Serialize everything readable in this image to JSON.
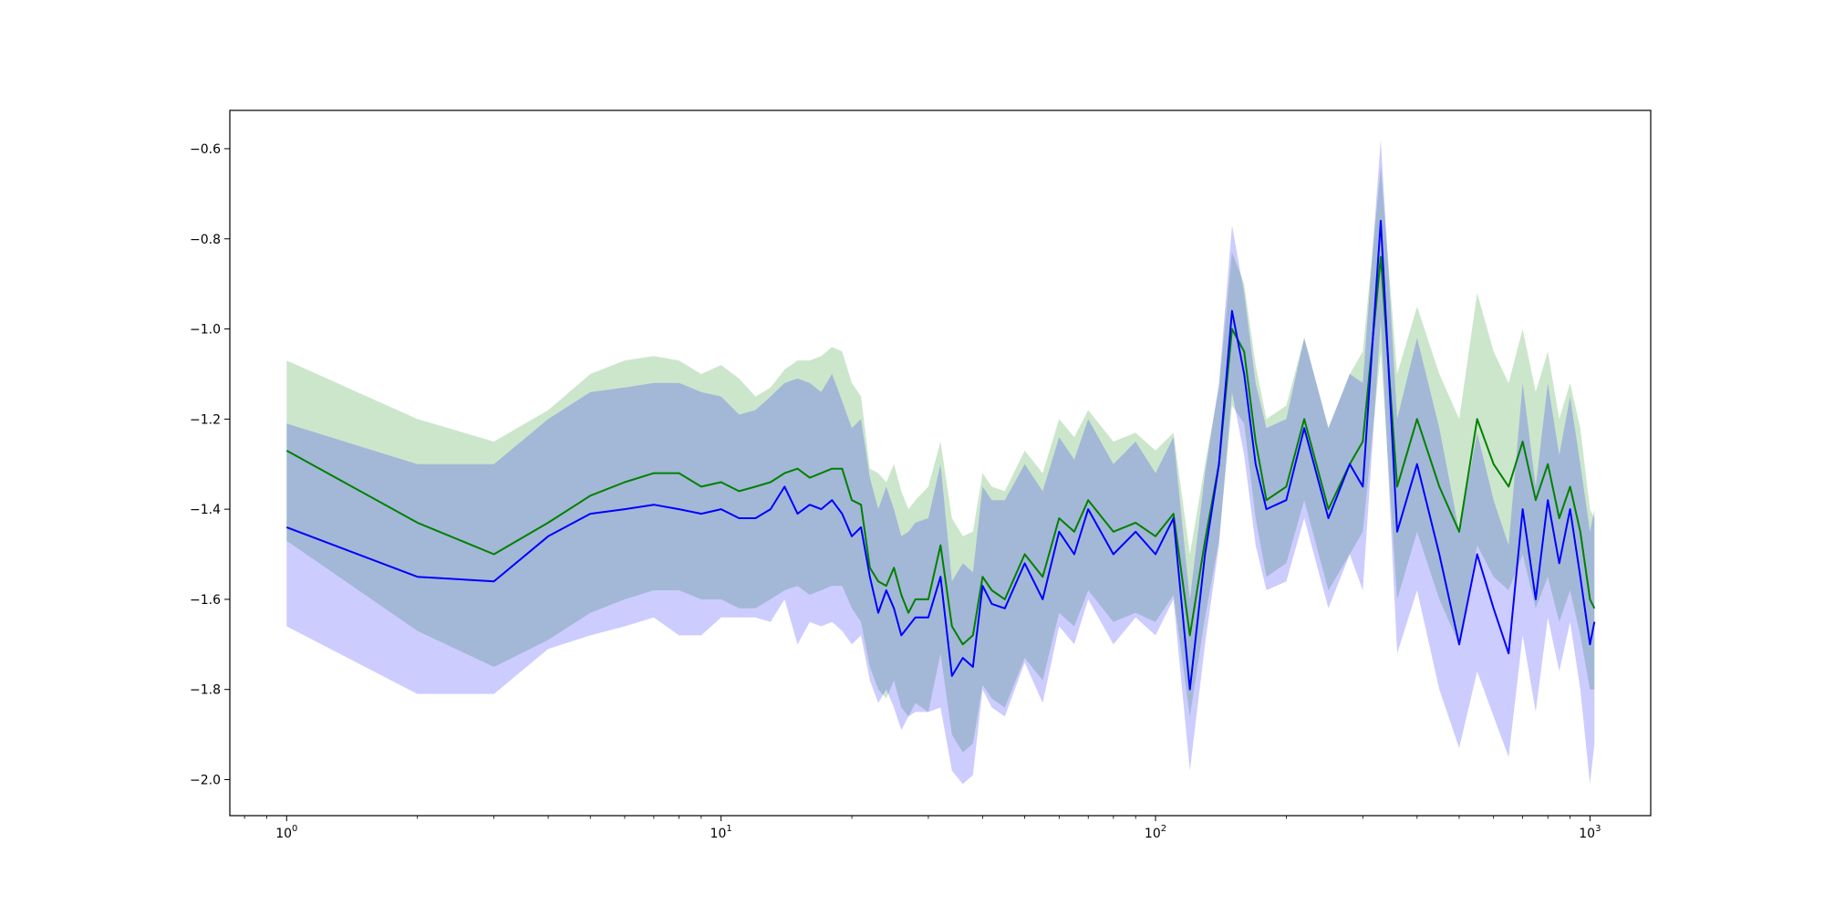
{
  "chart_data": {
    "type": "line",
    "title": "",
    "xlabel": "",
    "ylabel": "",
    "xscale": "log",
    "xlim": [
      0.74,
      1380
    ],
    "ylim": [
      -2.08,
      -0.515
    ],
    "grid": false,
    "x_ticks": [
      {
        "value": 1,
        "base": "10",
        "exp": "0"
      },
      {
        "value": 10,
        "base": "10",
        "exp": "1"
      },
      {
        "value": 100,
        "base": "10",
        "exp": "2"
      },
      {
        "value": 1000,
        "base": "10",
        "exp": "3"
      }
    ],
    "y_ticks": [
      {
        "value": -0.6,
        "label": "−0.6"
      },
      {
        "value": -0.8,
        "label": "−0.8"
      },
      {
        "value": -1.0,
        "label": "−1.0"
      },
      {
        "value": -1.2,
        "label": "−1.2"
      },
      {
        "value": -1.4,
        "label": "−1.4"
      },
      {
        "value": -1.6,
        "label": "−1.6"
      },
      {
        "value": -1.8,
        "label": "−1.8"
      },
      {
        "value": -2.0,
        "label": "−2.0"
      }
    ],
    "series": [
      {
        "color": "#008000",
        "band_color": "#008000",
        "band_opacity": 0.2,
        "x": [
          1,
          2,
          3,
          4,
          5,
          6,
          7,
          8,
          9,
          10,
          11,
          12,
          13,
          14,
          15,
          16,
          17,
          18,
          19,
          20,
          21,
          22,
          23,
          24,
          25,
          26,
          27,
          28,
          30,
          32,
          34,
          36,
          38,
          40,
          42,
          45,
          50,
          55,
          60,
          65,
          70,
          80,
          90,
          100,
          110,
          120,
          130,
          140,
          150,
          160,
          170,
          180,
          200,
          220,
          250,
          280,
          300,
          330,
          360,
          400,
          450,
          500,
          550,
          600,
          650,
          700,
          750,
          800,
          850,
          900,
          950,
          1000,
          1024
        ],
        "values": [
          -1.27,
          -1.43,
          -1.5,
          -1.43,
          -1.37,
          -1.34,
          -1.32,
          -1.32,
          -1.35,
          -1.34,
          -1.36,
          -1.35,
          -1.34,
          -1.32,
          -1.31,
          -1.33,
          -1.32,
          -1.31,
          -1.31,
          -1.38,
          -1.39,
          -1.53,
          -1.56,
          -1.57,
          -1.53,
          -1.59,
          -1.63,
          -1.6,
          -1.6,
          -1.48,
          -1.66,
          -1.7,
          -1.68,
          -1.55,
          -1.58,
          -1.6,
          -1.5,
          -1.55,
          -1.42,
          -1.45,
          -1.38,
          -1.45,
          -1.43,
          -1.46,
          -1.41,
          -1.68,
          -1.47,
          -1.3,
          -1.0,
          -1.05,
          -1.25,
          -1.38,
          -1.35,
          -1.2,
          -1.4,
          -1.3,
          -1.25,
          -0.84,
          -1.35,
          -1.2,
          -1.35,
          -1.45,
          -1.2,
          -1.3,
          -1.35,
          -1.25,
          -1.38,
          -1.3,
          -1.42,
          -1.35,
          -1.45,
          -1.6,
          -1.62
        ],
        "lower": [
          -1.47,
          -1.67,
          -1.75,
          -1.69,
          -1.63,
          -1.6,
          -1.58,
          -1.58,
          -1.6,
          -1.6,
          -1.62,
          -1.62,
          -1.6,
          -1.58,
          -1.57,
          -1.59,
          -1.58,
          -1.57,
          -1.57,
          -1.62,
          -1.65,
          -1.75,
          -1.8,
          -1.82,
          -1.78,
          -1.84,
          -1.86,
          -1.83,
          -1.85,
          -1.72,
          -1.9,
          -1.94,
          -1.92,
          -1.79,
          -1.82,
          -1.84,
          -1.73,
          -1.78,
          -1.63,
          -1.66,
          -1.58,
          -1.65,
          -1.63,
          -1.65,
          -1.59,
          -1.86,
          -1.64,
          -1.47,
          -1.17,
          -1.21,
          -1.42,
          -1.55,
          -1.52,
          -1.38,
          -1.58,
          -1.5,
          -1.45,
          -1.05,
          -1.6,
          -1.45,
          -1.6,
          -1.7,
          -1.48,
          -1.55,
          -1.58,
          -1.5,
          -1.62,
          -1.55,
          -1.65,
          -1.58,
          -1.68,
          -1.8,
          -1.8
        ],
        "upper": [
          -1.07,
          -1.2,
          -1.25,
          -1.18,
          -1.1,
          -1.07,
          -1.06,
          -1.07,
          -1.1,
          -1.08,
          -1.11,
          -1.15,
          -1.13,
          -1.09,
          -1.07,
          -1.07,
          -1.06,
          -1.04,
          -1.05,
          -1.12,
          -1.15,
          -1.31,
          -1.32,
          -1.34,
          -1.3,
          -1.36,
          -1.4,
          -1.38,
          -1.35,
          -1.25,
          -1.42,
          -1.46,
          -1.45,
          -1.32,
          -1.35,
          -1.36,
          -1.27,
          -1.32,
          -1.2,
          -1.24,
          -1.18,
          -1.25,
          -1.23,
          -1.27,
          -1.23,
          -1.5,
          -1.3,
          -1.13,
          -0.83,
          -0.9,
          -1.08,
          -1.2,
          -1.17,
          -1.02,
          -1.22,
          -1.1,
          -1.05,
          -0.64,
          -1.1,
          -0.95,
          -1.1,
          -1.2,
          -0.92,
          -1.05,
          -1.12,
          -1.0,
          -1.14,
          -1.05,
          -1.2,
          -1.12,
          -1.22,
          -1.4,
          -1.42
        ]
      },
      {
        "color": "#0000ff",
        "band_color": "#0000ff",
        "band_opacity": 0.2,
        "x": [
          1,
          2,
          3,
          4,
          5,
          6,
          7,
          8,
          9,
          10,
          11,
          12,
          13,
          14,
          15,
          16,
          17,
          18,
          19,
          20,
          21,
          22,
          23,
          24,
          25,
          26,
          27,
          28,
          30,
          32,
          34,
          36,
          38,
          40,
          42,
          45,
          50,
          55,
          60,
          65,
          70,
          80,
          90,
          100,
          110,
          120,
          130,
          140,
          150,
          160,
          170,
          180,
          200,
          220,
          250,
          280,
          300,
          330,
          360,
          400,
          450,
          500,
          550,
          600,
          650,
          700,
          750,
          800,
          850,
          900,
          950,
          1000,
          1024
        ],
        "values": [
          -1.44,
          -1.55,
          -1.56,
          -1.46,
          -1.41,
          -1.4,
          -1.39,
          -1.4,
          -1.41,
          -1.4,
          -1.42,
          -1.42,
          -1.4,
          -1.35,
          -1.41,
          -1.39,
          -1.4,
          -1.38,
          -1.41,
          -1.46,
          -1.44,
          -1.55,
          -1.63,
          -1.58,
          -1.62,
          -1.68,
          -1.66,
          -1.64,
          -1.64,
          -1.55,
          -1.77,
          -1.73,
          -1.75,
          -1.57,
          -1.61,
          -1.62,
          -1.52,
          -1.6,
          -1.45,
          -1.5,
          -1.4,
          -1.5,
          -1.45,
          -1.5,
          -1.42,
          -1.8,
          -1.5,
          -1.3,
          -0.96,
          -1.1,
          -1.3,
          -1.4,
          -1.38,
          -1.22,
          -1.42,
          -1.3,
          -1.35,
          -0.76,
          -1.45,
          -1.3,
          -1.5,
          -1.7,
          -1.5,
          -1.62,
          -1.72,
          -1.4,
          -1.6,
          -1.38,
          -1.52,
          -1.4,
          -1.55,
          -1.7,
          -1.65
        ],
        "lower": [
          -1.66,
          -1.81,
          -1.81,
          -1.71,
          -1.68,
          -1.66,
          -1.64,
          -1.68,
          -1.68,
          -1.64,
          -1.64,
          -1.64,
          -1.65,
          -1.6,
          -1.7,
          -1.65,
          -1.66,
          -1.65,
          -1.67,
          -1.7,
          -1.68,
          -1.78,
          -1.83,
          -1.8,
          -1.84,
          -1.89,
          -1.86,
          -1.85,
          -1.85,
          -1.84,
          -1.98,
          -2.01,
          -1.99,
          -1.8,
          -1.84,
          -1.86,
          -1.74,
          -1.83,
          -1.66,
          -1.7,
          -1.6,
          -1.7,
          -1.64,
          -1.68,
          -1.6,
          -1.98,
          -1.7,
          -1.48,
          -1.14,
          -1.28,
          -1.48,
          -1.58,
          -1.56,
          -1.42,
          -1.62,
          -1.5,
          -1.58,
          -0.98,
          -1.72,
          -1.58,
          -1.8,
          -1.93,
          -1.76,
          -1.86,
          -1.95,
          -1.68,
          -1.85,
          -1.64,
          -1.76,
          -1.65,
          -1.8,
          -2.01,
          -1.92
        ],
        "upper": [
          -1.21,
          -1.3,
          -1.3,
          -1.2,
          -1.14,
          -1.13,
          -1.12,
          -1.12,
          -1.14,
          -1.15,
          -1.19,
          -1.18,
          -1.15,
          -1.12,
          -1.11,
          -1.12,
          -1.14,
          -1.1,
          -1.16,
          -1.22,
          -1.2,
          -1.33,
          -1.4,
          -1.35,
          -1.4,
          -1.46,
          -1.45,
          -1.43,
          -1.42,
          -1.3,
          -1.56,
          -1.52,
          -1.54,
          -1.35,
          -1.38,
          -1.38,
          -1.3,
          -1.36,
          -1.24,
          -1.29,
          -1.2,
          -1.3,
          -1.25,
          -1.32,
          -1.24,
          -1.6,
          -1.32,
          -1.12,
          -0.77,
          -0.92,
          -1.12,
          -1.22,
          -1.2,
          -1.02,
          -1.22,
          -1.1,
          -1.12,
          -0.58,
          -1.2,
          -1.02,
          -1.22,
          -1.45,
          -1.23,
          -1.38,
          -1.48,
          -1.12,
          -1.35,
          -1.12,
          -1.28,
          -1.15,
          -1.3,
          -1.45,
          -1.4
        ]
      }
    ]
  }
}
